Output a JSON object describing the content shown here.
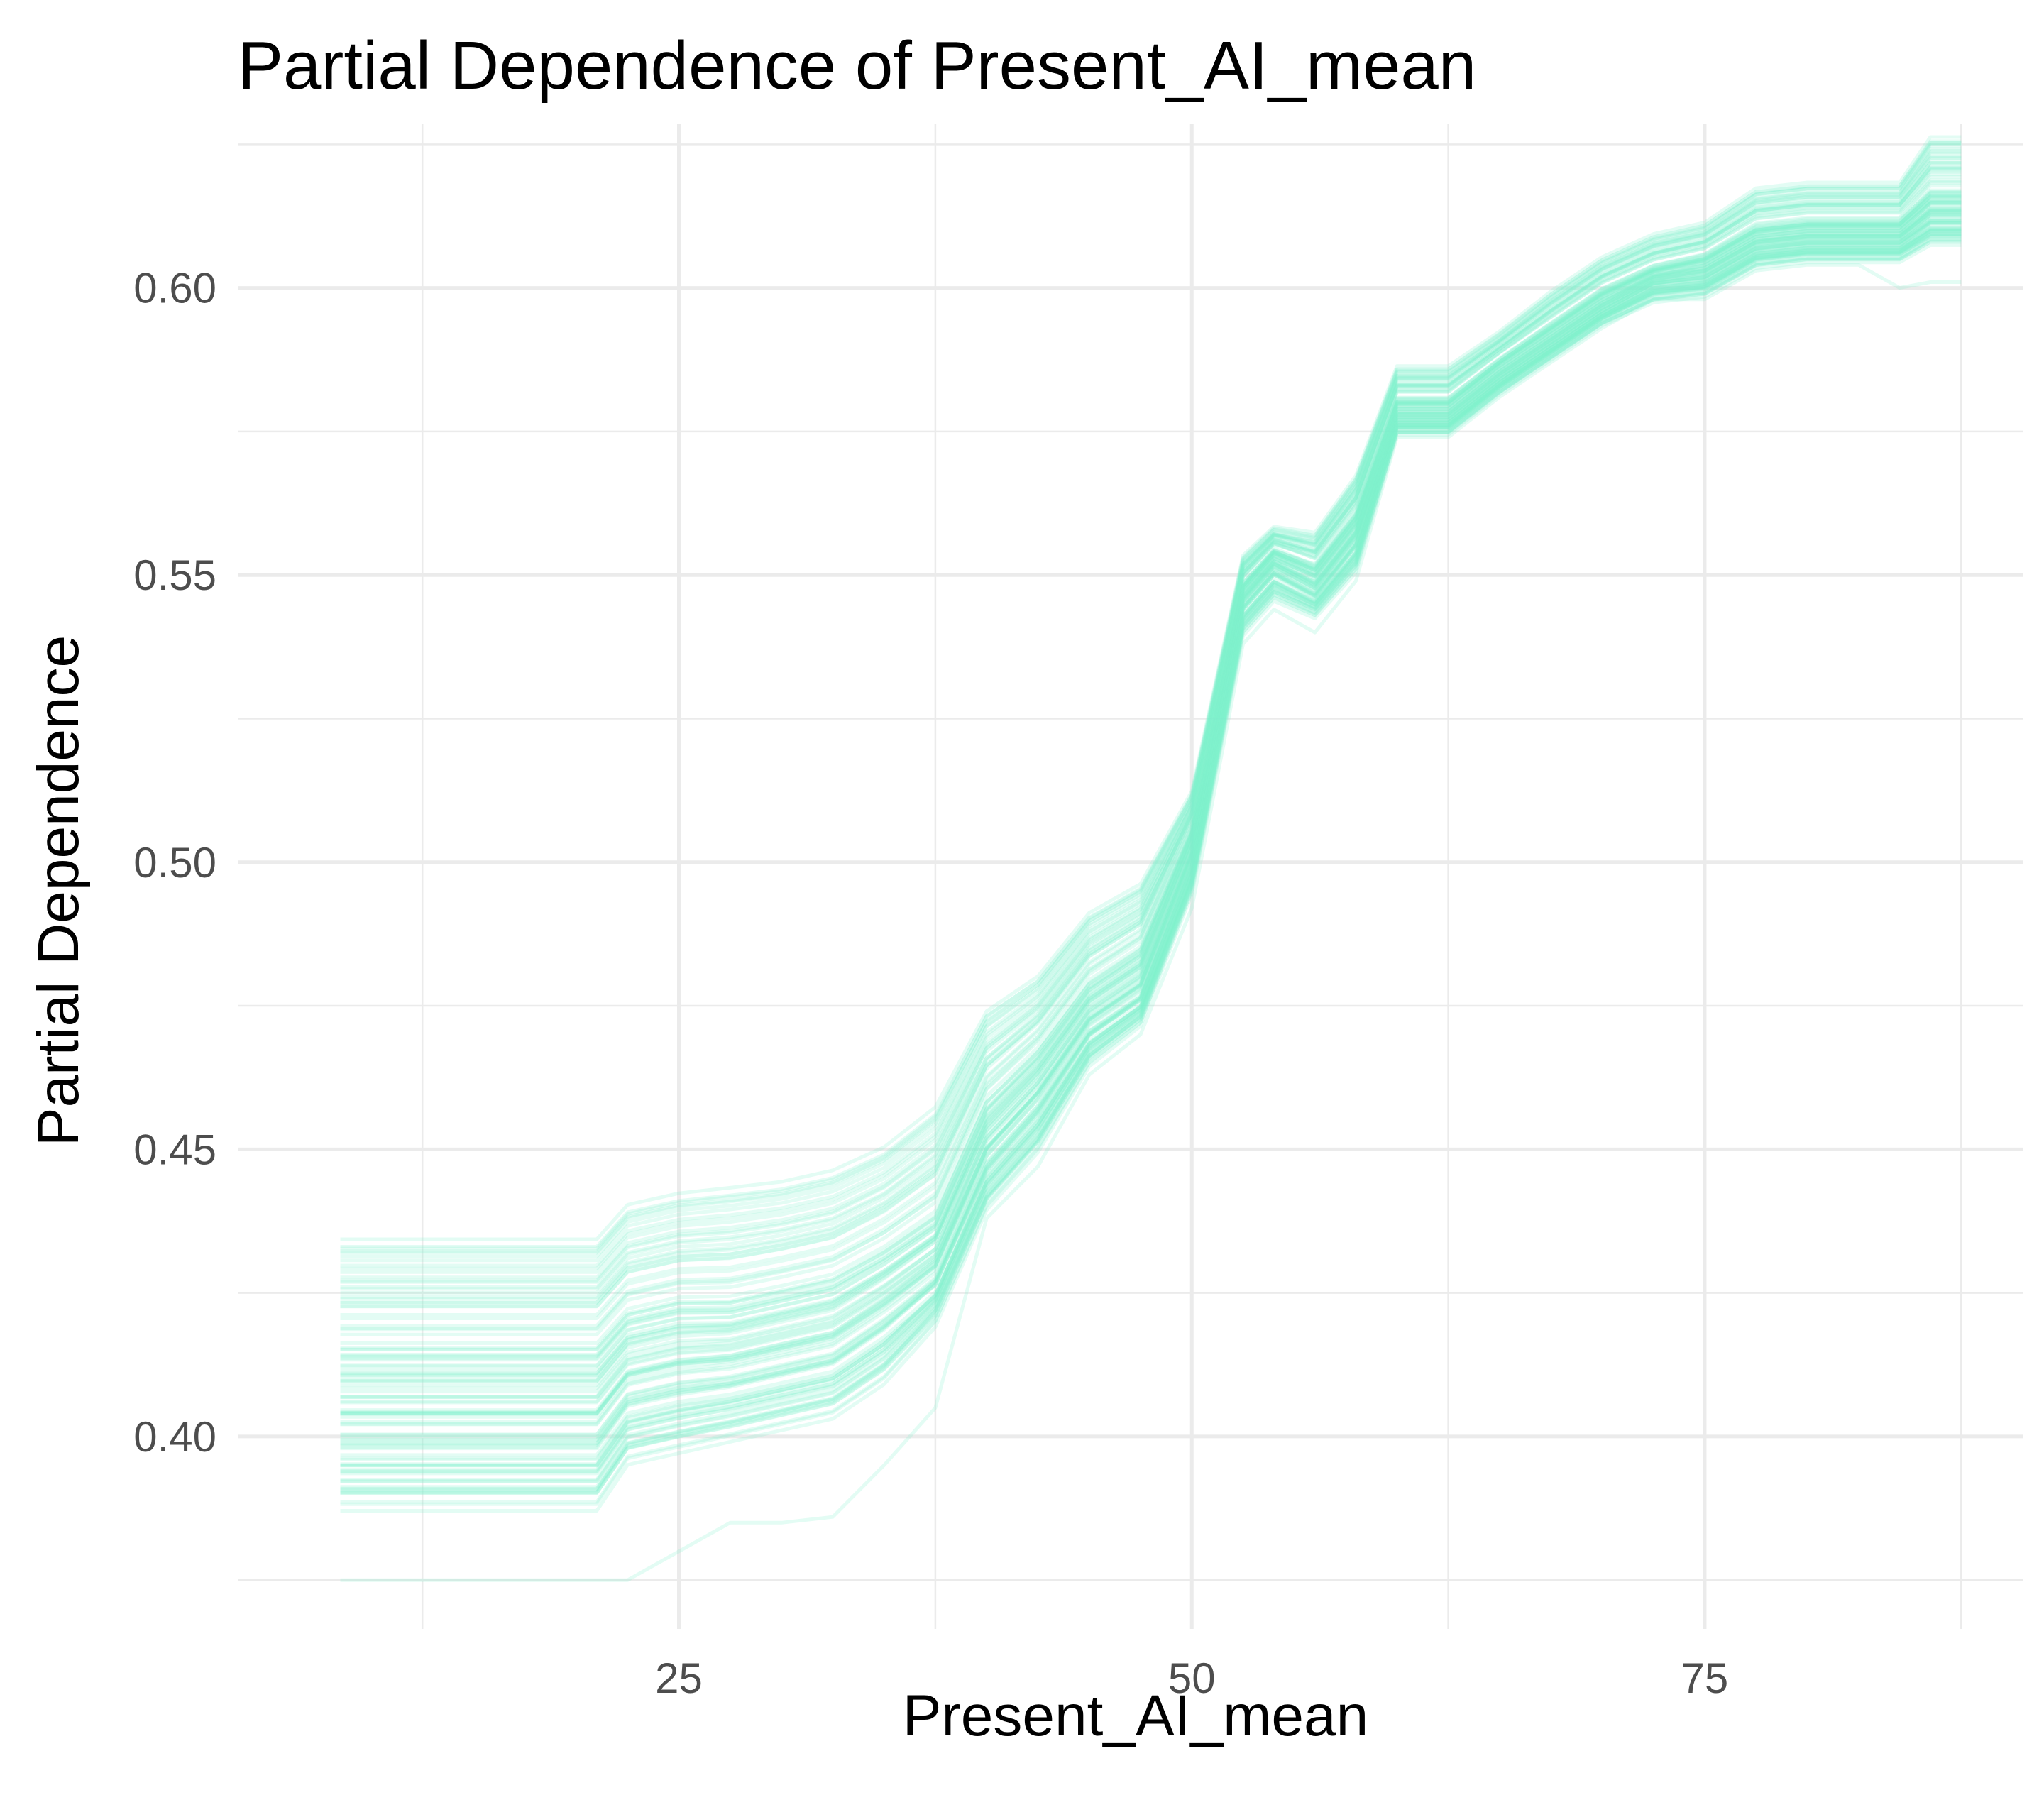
{
  "chart_data": {
    "type": "line",
    "title": "Partial Dependence of Present_AI_mean",
    "xlabel": "Present_AI_mean",
    "ylabel": "Partial Dependence",
    "xlim": [
      3.5,
      90.5
    ],
    "ylim": [
      0.3665,
      0.6285
    ],
    "x_ticks": [
      25,
      50,
      75
    ],
    "x_tick_labels": [
      "25",
      "50",
      "75"
    ],
    "x_minor_ticks": [
      12.5,
      37.5,
      62.5,
      87.5
    ],
    "y_ticks": [
      0.4,
      0.45,
      0.5,
      0.55,
      0.6
    ],
    "y_tick_labels": [
      "0.40",
      "0.45",
      "0.50",
      "0.55",
      "0.60"
    ],
    "y_minor_ticks": [
      0.375,
      0.425,
      0.475,
      0.525,
      0.575,
      0.625
    ],
    "grid": true,
    "legend": "none",
    "line_color": "#7FF2CB",
    "line_opacity": 0.22,
    "n_lines": 100,
    "x": [
      8.5,
      21,
      22.5,
      25,
      27.5,
      30,
      32.5,
      35,
      37.5,
      40,
      42.5,
      45,
      47.5,
      50,
      52.5,
      54,
      56,
      58,
      60,
      62.5,
      65,
      67.5,
      70,
      72.5,
      75,
      77.5,
      80,
      82.5,
      84.5,
      86,
      87.5
    ],
    "series": [
      {
        "values": [
          0.434,
          0.434,
          0.44,
          0.442,
          0.443,
          0.444,
          0.446,
          0.45,
          0.457,
          0.474,
          0.48,
          0.491,
          0.496,
          0.512,
          0.553,
          0.558,
          0.557,
          0.567,
          0.586,
          0.586,
          0.592,
          0.599,
          0.605,
          0.609,
          0.611,
          0.617,
          0.618,
          0.618,
          0.618,
          0.626,
          0.626
        ]
      },
      {
        "values": [
          0.414,
          0.414,
          0.42,
          0.422,
          0.422,
          0.424,
          0.426,
          0.431,
          0.437,
          0.457,
          0.466,
          0.478,
          0.484,
          0.505,
          0.548,
          0.554,
          0.551,
          0.56,
          0.58,
          0.58,
          0.587,
          0.593,
          0.599,
          0.603,
          0.605,
          0.61,
          0.611,
          0.611,
          0.611,
          0.616,
          0.616
        ]
      },
      {
        "values": [
          0.401,
          0.401,
          0.408,
          0.41,
          0.411,
          0.413,
          0.415,
          0.421,
          0.428,
          0.448,
          0.458,
          0.471,
          0.477,
          0.5,
          0.545,
          0.551,
          0.547,
          0.556,
          0.577,
          0.577,
          0.584,
          0.59,
          0.596,
          0.601,
          0.602,
          0.607,
          0.608,
          0.608,
          0.608,
          0.612,
          0.612
        ]
      },
      {
        "values": [
          0.388,
          0.388,
          0.396,
          0.398,
          0.4,
          0.402,
          0.404,
          0.41,
          0.42,
          0.44,
          0.45,
          0.465,
          0.472,
          0.495,
          0.54,
          0.546,
          0.543,
          0.551,
          0.575,
          0.575,
          0.582,
          0.588,
          0.594,
          0.598,
          0.599,
          0.604,
          0.605,
          0.605,
          0.605,
          0.608,
          0.608
        ]
      },
      {
        "values": [
          0.375,
          0.375,
          0.375,
          0.38,
          0.385,
          0.385,
          0.386,
          0.395,
          0.405,
          0.438,
          0.447,
          0.463,
          0.47,
          0.492,
          0.538,
          0.544,
          0.54,
          0.549,
          0.574,
          0.574,
          0.581,
          0.587,
          0.593,
          0.598,
          0.598,
          0.603,
          0.604,
          0.604,
          0.6,
          0.601,
          0.601
        ]
      }
    ]
  }
}
